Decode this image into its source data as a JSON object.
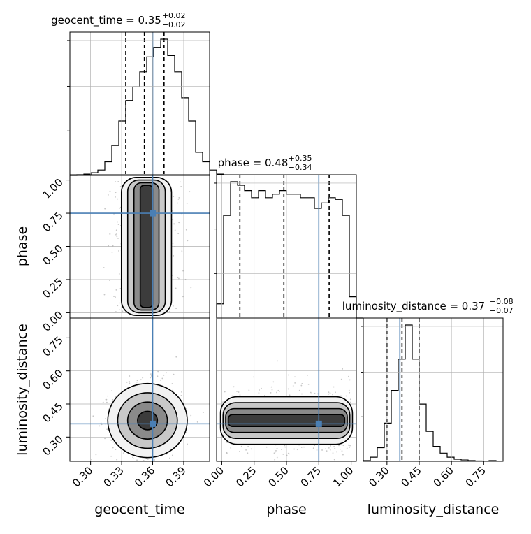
{
  "chart_data": {
    "type": "corner",
    "parameters": [
      {
        "key": "geocent_time",
        "label": "geocent_time",
        "range": [
          0.28,
          0.415
        ],
        "ticks": [
          0.3,
          0.33,
          0.36,
          0.39
        ],
        "tick_labels": [
          "0.30",
          "0.33",
          "0.36",
          "0.39"
        ],
        "truth": 0.36,
        "title": "geocent_time = 0.35",
        "title_sup": "+0.02",
        "title_sub": "−0.02",
        "quantiles": [
          0.334,
          0.352,
          0.371
        ]
      },
      {
        "key": "phase",
        "label": "phase",
        "range": [
          -0.04,
          1.04
        ],
        "ticks": [
          0.0,
          0.25,
          0.5,
          0.75,
          1.0
        ],
        "tick_labels": [
          "0.00",
          "0.25",
          "0.50",
          "0.75",
          "1.00"
        ],
        "truth": 0.75,
        "title": "phase = 0.48",
        "title_sup": "+0.35",
        "title_sub": "−0.34",
        "quantiles": [
          0.14,
          0.48,
          0.83
        ]
      },
      {
        "key": "luminosity_distance",
        "label": "luminosity_distance",
        "range": [
          0.19,
          0.84
        ],
        "ticks": [
          0.3,
          0.45,
          0.6,
          0.75
        ],
        "tick_labels": [
          "0.30",
          "0.45",
          "0.60",
          "0.75"
        ],
        "truth": 0.36,
        "title": "luminosity_distance = 0.37",
        "title_sup": "+0.08",
        "title_sub": "−0.07",
        "quantiles": [
          0.3,
          0.37,
          0.45
        ]
      }
    ],
    "histograms": {
      "geocent_time": {
        "bins_start": 0.28,
        "bin_width": 0.00675,
        "counts": [
          0,
          0.5,
          1,
          2,
          4,
          10,
          22,
          40,
          55,
          65,
          76,
          87,
          94,
          100,
          88,
          76,
          57,
          40,
          17,
          10,
          4,
          1
        ]
      },
      "phase": {
        "bins_start": -0.04,
        "bin_width": 0.054,
        "counts": [
          8,
          58,
          77,
          75,
          72,
          68,
          72,
          68,
          70,
          72,
          70,
          70,
          68,
          68,
          62,
          65,
          68,
          67,
          58,
          12,
          0
        ]
      },
      "luminosity_distance": {
        "bins_start": 0.19,
        "bin_width": 0.0325,
        "counts": [
          0.5,
          3,
          10,
          28,
          52,
          75,
          100,
          75,
          42,
          22,
          11,
          6,
          3,
          1.5,
          1,
          0.5,
          0.3,
          0.2,
          0.5,
          0.1
        ]
      }
    },
    "joint_2d": [
      {
        "x": "geocent_time",
        "y": "phase",
        "shape": "vertical band",
        "x_center": 0.354,
        "x_sd": 0.011,
        "y_range": [
          0.0,
          1.0
        ]
      },
      {
        "x": "geocent_time",
        "y": "luminosity_distance",
        "shape": "oval",
        "x_center": 0.355,
        "x_sd": 0.012,
        "y_center": 0.375,
        "y_sd": 0.06
      },
      {
        "x": "phase",
        "y": "luminosity_distance",
        "shape": "horizontal band",
        "x_range": [
          0.0,
          1.0
        ],
        "y_center": 0.375,
        "y_sd": 0.045
      }
    ],
    "truth_color": "#4a7fb4",
    "grid": true
  }
}
